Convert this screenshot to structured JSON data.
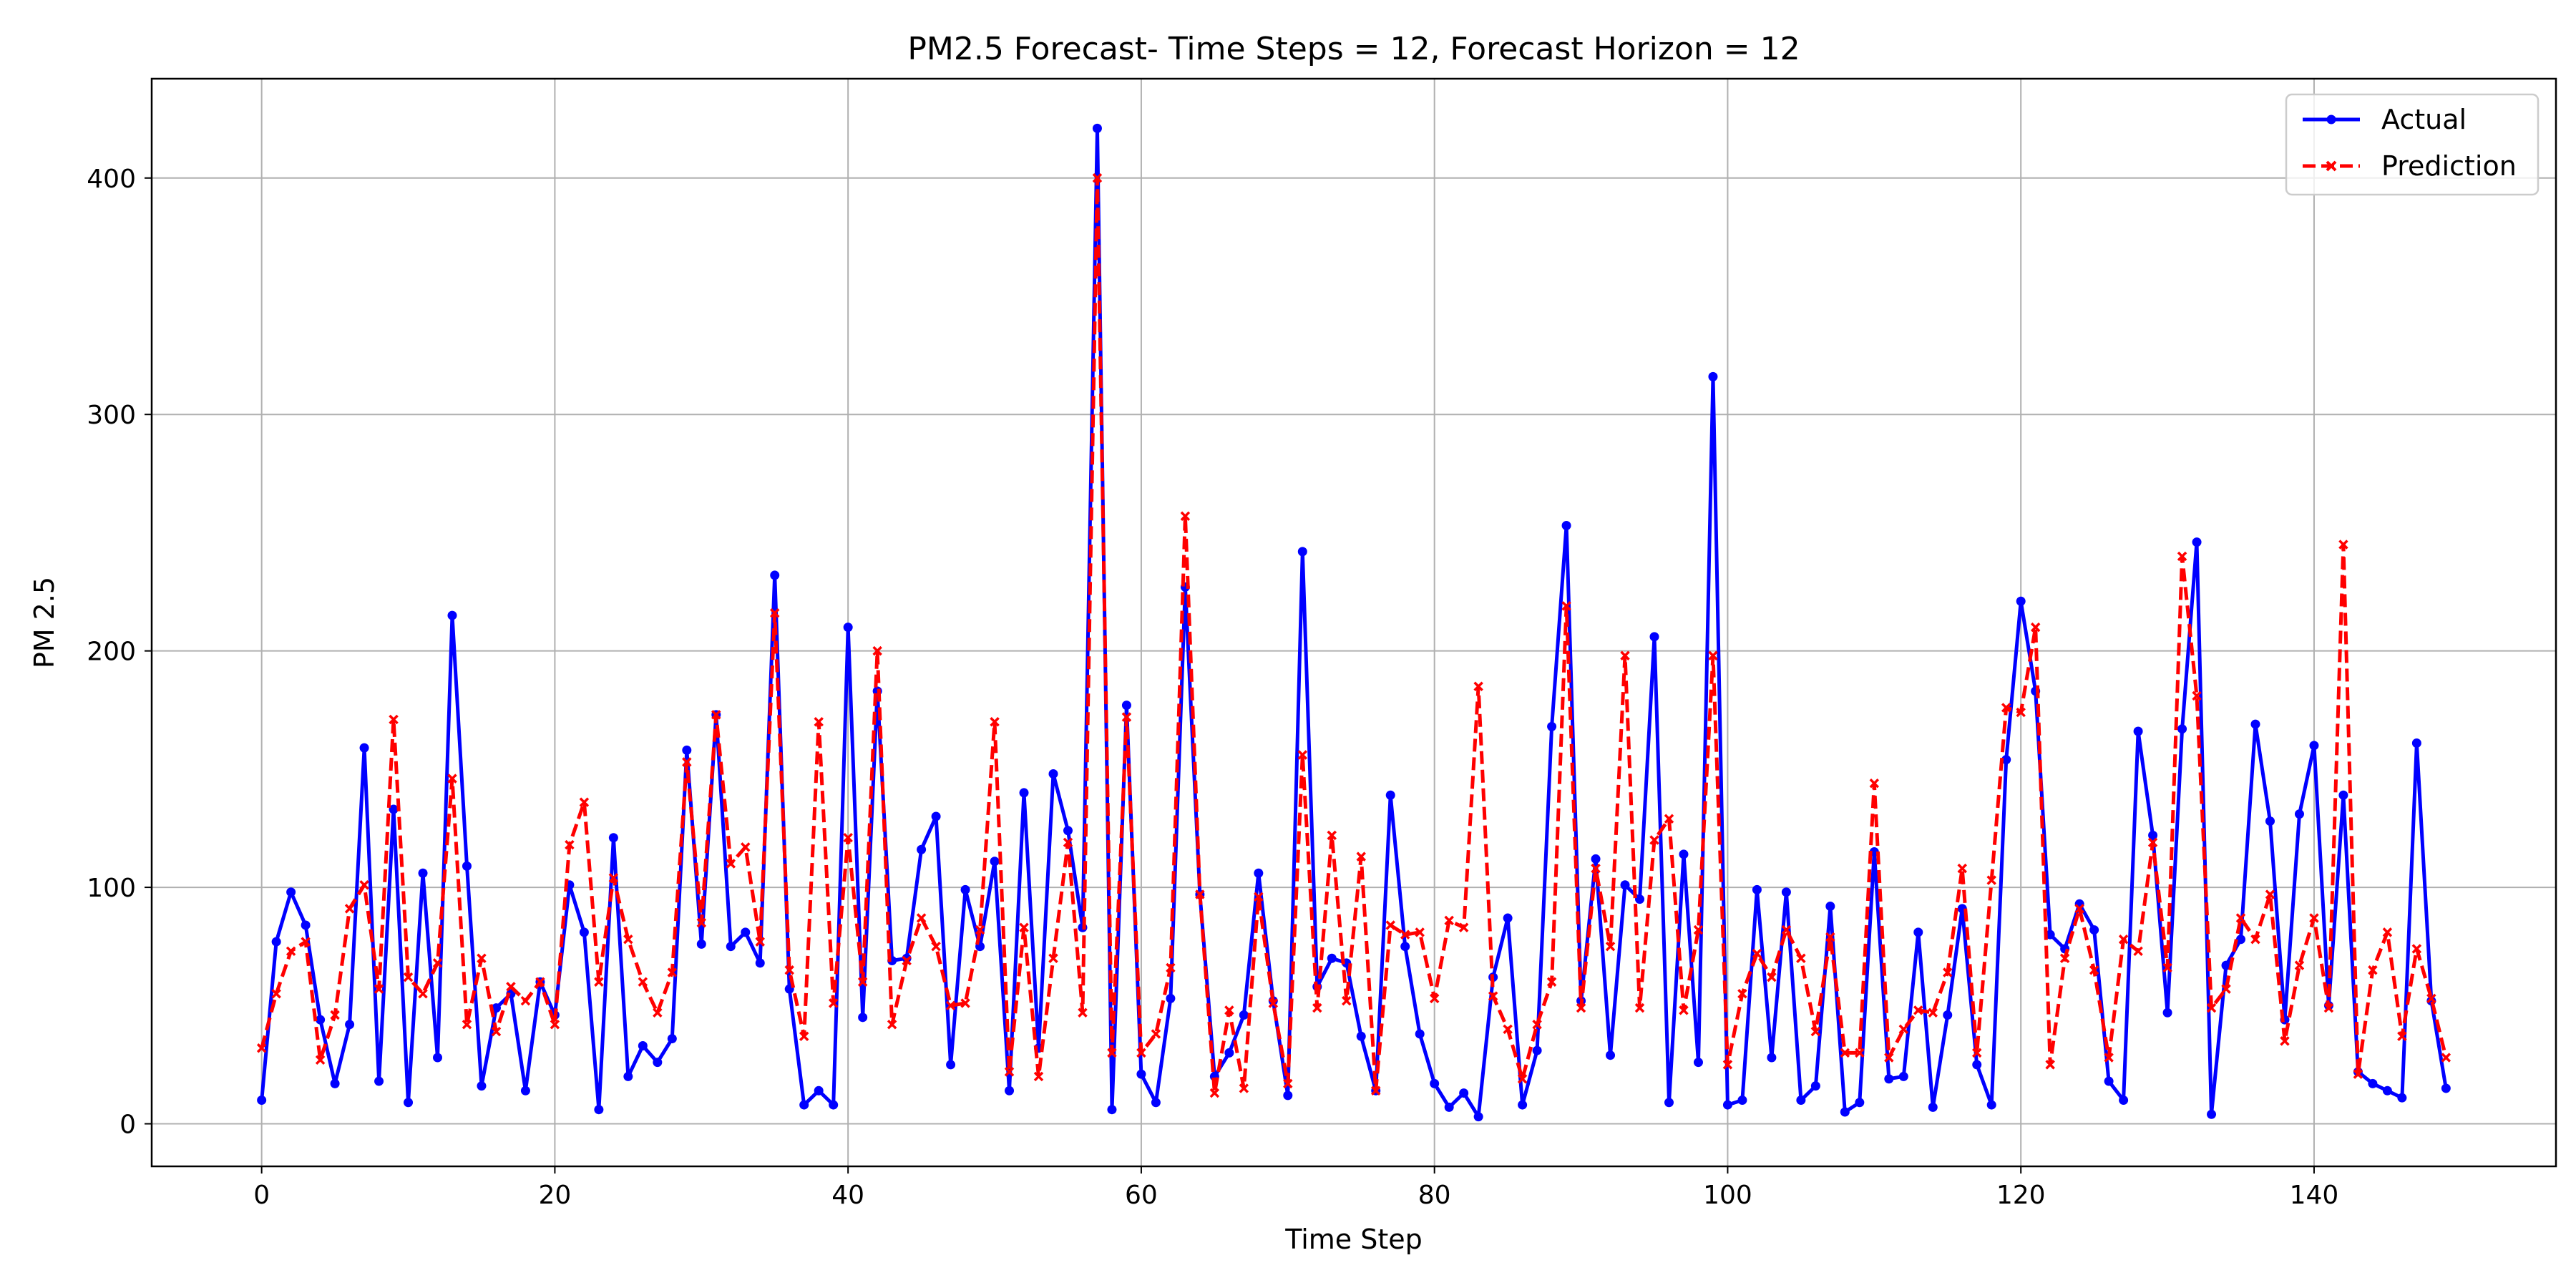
{
  "chart_data": {
    "type": "line",
    "title": "PM2.5 Forecast- Time Steps = 12, Forecast Horizon = 12",
    "xlabel": "Time Step",
    "ylabel": "PM 2.5",
    "xlim": [
      -7.5,
      156.5
    ],
    "ylim": [
      -18,
      442
    ],
    "xticks": [
      0,
      20,
      40,
      60,
      80,
      100,
      120,
      140
    ],
    "yticks": [
      0,
      100,
      200,
      300,
      400
    ],
    "grid": true,
    "legend": "top-right",
    "series": [
      {
        "name": "Actual",
        "color": "#0000ff",
        "style": "solid",
        "marker": "dot",
        "values": [
          10,
          77,
          98,
          84,
          44,
          17,
          42,
          159,
          18,
          133,
          9,
          106,
          28,
          215,
          109,
          16,
          49,
          55,
          14,
          60,
          46,
          101,
          81,
          6,
          121,
          20,
          33,
          26,
          36,
          158,
          76,
          173,
          75,
          81,
          68,
          232,
          57,
          8,
          14,
          8,
          210,
          45,
          183,
          69,
          70,
          116,
          130,
          25,
          99,
          75,
          111,
          14,
          140,
          32,
          148,
          124,
          83,
          421,
          6,
          177,
          21,
          9,
          53,
          227,
          97,
          20,
          30,
          46,
          106,
          52,
          12,
          242,
          58,
          70,
          68,
          37,
          14,
          139,
          75,
          38,
          17,
          7,
          13,
          3,
          62,
          87,
          8,
          31,
          168,
          253,
          52,
          112,
          29,
          101,
          95,
          206,
          9,
          114,
          26,
          316,
          8,
          10,
          99,
          28,
          98,
          10,
          16,
          92,
          5,
          9,
          115,
          19,
          20,
          81,
          7,
          46,
          91,
          25,
          8,
          154,
          221,
          183,
          80,
          74,
          93,
          82,
          18,
          10,
          166,
          122,
          47,
          167,
          246,
          4,
          67,
          78,
          169,
          128,
          44,
          131,
          160,
          50,
          139,
          22,
          17,
          14,
          11,
          161,
          52,
          15
        ]
      },
      {
        "name": "Prediction",
        "color": "#ff0000",
        "style": "dashed",
        "marker": "x",
        "values": [
          32,
          55,
          73,
          77,
          27,
          46,
          91,
          101,
          57,
          171,
          62,
          55,
          68,
          146,
          42,
          70,
          39,
          58,
          52,
          60,
          42,
          118,
          136,
          60,
          104,
          78,
          60,
          47,
          64,
          153,
          85,
          173,
          110,
          117,
          77,
          216,
          65,
          37,
          170,
          51,
          121,
          60,
          200,
          42,
          69,
          87,
          75,
          50,
          51,
          82,
          170,
          22,
          83,
          20,
          70,
          119,
          47,
          400,
          30,
          172,
          30,
          38,
          66,
          257,
          97,
          13,
          48,
          15,
          96,
          51,
          17,
          156,
          49,
          122,
          52,
          113,
          14,
          84,
          80,
          81,
          53,
          86,
          83,
          185,
          54,
          40,
          19,
          42,
          60,
          219,
          49,
          108,
          75,
          198,
          49,
          120,
          129,
          48,
          82,
          198,
          25,
          55,
          72,
          62,
          82,
          70,
          39,
          79,
          30,
          30,
          144,
          28,
          40,
          48,
          47,
          64,
          108,
          30,
          103,
          176,
          174,
          210,
          25,
          70,
          91,
          65,
          28,
          78,
          73,
          119,
          66,
          240,
          181,
          49,
          57,
          87,
          78,
          97,
          35,
          67,
          87,
          49,
          245,
          21,
          65,
          81,
          37,
          74,
          53,
          28
        ]
      }
    ]
  }
}
